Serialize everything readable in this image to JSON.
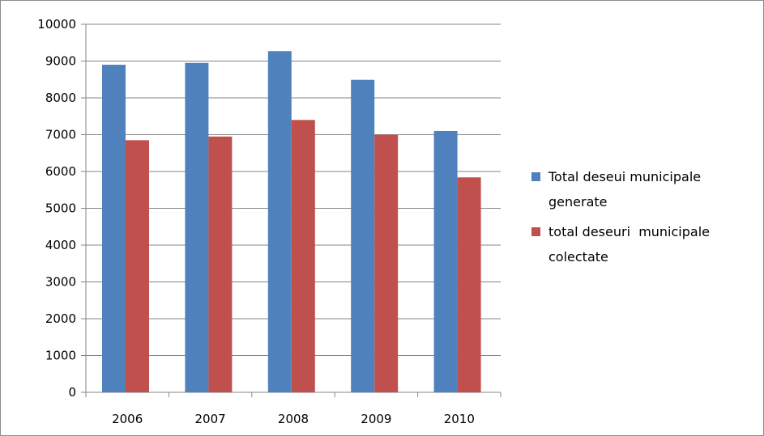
{
  "chart_data": {
    "type": "bar",
    "categories": [
      "2006",
      "2007",
      "2008",
      "2009",
      "2010"
    ],
    "series": [
      {
        "name": "Total deseui municipale generate",
        "values": [
          8900,
          8950,
          9270,
          8490,
          7100
        ],
        "color": "#4f81bd"
      },
      {
        "name": "total deseuri  municipale colectate",
        "values": [
          6850,
          6950,
          7400,
          7000,
          5840
        ],
        "color": "#c0504d"
      }
    ],
    "ylim": [
      0,
      10000
    ],
    "yticks": [
      0,
      1000,
      2000,
      3000,
      4000,
      5000,
      6000,
      7000,
      8000,
      9000,
      10000
    ],
    "grid": true,
    "legend_position": "right",
    "legend_lines": [
      [
        "Total deseui municipale",
        "generate"
      ],
      [
        "total deseuri  municipale",
        "colectate"
      ]
    ],
    "title": "",
    "xlabel": "",
    "ylabel": ""
  }
}
